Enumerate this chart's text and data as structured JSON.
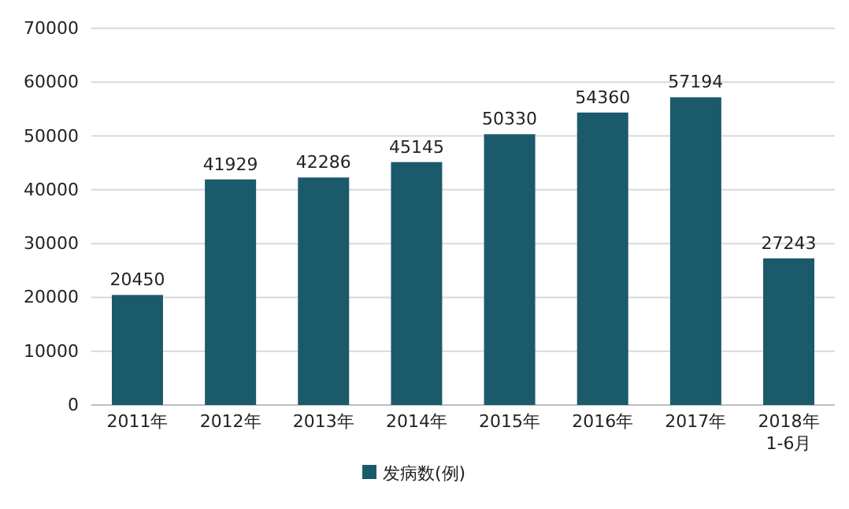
{
  "chart_data": {
    "type": "bar",
    "categories": [
      "2011年",
      "2012年",
      "2013年",
      "2014年",
      "2015年",
      "2016年",
      "2017年",
      "2018年\n1-6月"
    ],
    "series": [
      {
        "name": "发病数(例)",
        "color": "#1b5a6b",
        "values": [
          20450,
          41929,
          42286,
          45145,
          50330,
          54360,
          57194,
          27243
        ]
      }
    ],
    "ylim": [
      0,
      70000
    ],
    "yticks": [
      0,
      10000,
      20000,
      30000,
      40000,
      50000,
      60000,
      70000
    ],
    "grid": "y",
    "data_labels": true,
    "legend": "bottom"
  }
}
